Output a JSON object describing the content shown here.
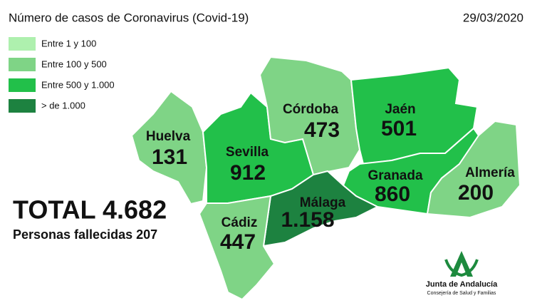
{
  "title": "Número de casos de Coronavirus (Covid-19)",
  "date": "29/03/2020",
  "legend": [
    {
      "label": "Entre 1 y 100",
      "color": "#aef0ae"
    },
    {
      "label": "Entre 100 y 500",
      "color": "#7fd486"
    },
    {
      "label": "Entre 500 y 1.000",
      "color": "#22c04a"
    },
    {
      "label": "> de 1.000",
      "color": "#1d8240"
    }
  ],
  "provinces": [
    {
      "name": "Huelva",
      "cases": "131",
      "color": "#7fd486"
    },
    {
      "name": "Sevilla",
      "cases": "912",
      "color": "#22c04a"
    },
    {
      "name": "Córdoba",
      "cases": "473",
      "color": "#7fd486"
    },
    {
      "name": "Jaén",
      "cases": "501",
      "color": "#22c04a"
    },
    {
      "name": "Granada",
      "cases": "860",
      "color": "#22c04a"
    },
    {
      "name": "Almería",
      "cases": "200",
      "color": "#7fd486"
    },
    {
      "name": "Málaga",
      "cases": "1.158",
      "color": "#1d8240"
    },
    {
      "name": "Cádiz",
      "cases": "447",
      "color": "#7fd486"
    }
  ],
  "total": "TOTAL 4.682",
  "deaths": "Personas fallecidas 207",
  "logo": {
    "name": "Junta de Andalucía",
    "subtitle": "Consejería de Salud y Familias"
  }
}
